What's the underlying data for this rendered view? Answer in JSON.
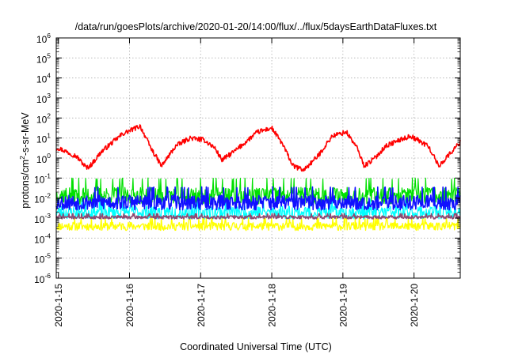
{
  "chart_data": {
    "type": "line",
    "title": "/data/run/goesPlots/archive/2020-01-20/14:00/flux/../flux/5daysEarthDataFluxes.txt",
    "xlabel": "Coordinated Universal Time (UTC)",
    "ylabel": "protons/cm2-s-sr-MeV",
    "ylabel_parts": {
      "pre": "protons/cm",
      "sup": "2",
      "post": "-s-sr-MeV"
    },
    "yscale": "log",
    "ylim": [
      -6,
      6
    ],
    "yticks": [
      {
        "exp": -6,
        "base": "10",
        "sup": "-6"
      },
      {
        "exp": -5,
        "base": "10",
        "sup": "-5"
      },
      {
        "exp": -4,
        "base": "10",
        "sup": "-4"
      },
      {
        "exp": -3,
        "base": "10",
        "sup": "-3"
      },
      {
        "exp": -2,
        "base": "10",
        "sup": "-2"
      },
      {
        "exp": -1,
        "base": "10",
        "sup": "-1"
      },
      {
        "exp": 0,
        "base": "10",
        "sup": "0"
      },
      {
        "exp": 1,
        "base": "10",
        "sup": "1"
      },
      {
        "exp": 2,
        "base": "10",
        "sup": "2"
      },
      {
        "exp": 3,
        "base": "10",
        "sup": "3"
      },
      {
        "exp": 4,
        "base": "10",
        "sup": "4"
      },
      {
        "exp": 5,
        "base": "10",
        "sup": "5"
      },
      {
        "exp": 6,
        "base": "10",
        "sup": "6"
      }
    ],
    "xlim": [
      -0.03,
      5.65
    ],
    "xticks": [
      {
        "day": 0,
        "label": "2020-1-15"
      },
      {
        "day": 1,
        "label": "2020-1-16"
      },
      {
        "day": 2,
        "label": "2020-1-17"
      },
      {
        "day": 3,
        "label": "2020-1-18"
      },
      {
        "day": 4,
        "label": "2020-1-19"
      },
      {
        "day": 5,
        "label": "2020-1-20"
      }
    ],
    "grid": true,
    "series": [
      {
        "color": "#ffff00",
        "log_center": -3.4,
        "noise": 0.22,
        "seed": 11,
        "width": 1.3,
        "kind": "noise"
      },
      {
        "color": "#00ffff",
        "log_center": -2.7,
        "noise": 0.35,
        "seed": 23,
        "width": 1.2,
        "kind": "noise"
      },
      {
        "color": "#00e000",
        "log_center": -1.85,
        "noise": 0.45,
        "seed": 37,
        "width": 1.2,
        "kind": "noise"
      },
      {
        "color": "#1010ff",
        "log_center": -2.2,
        "noise": 0.4,
        "seed": 53,
        "width": 1.6,
        "kind": "noise"
      },
      {
        "color": "#8e4a72",
        "log_center": -2.95,
        "noise": 0.09,
        "seed": 71,
        "width": 1.6,
        "kind": "noise"
      },
      {
        "color": "#ff0000",
        "seed": 97,
        "noise": 0.12,
        "width": 1.6,
        "kind": "profile",
        "x": [
          0.0,
          0.25,
          0.4,
          0.47,
          0.6,
          0.9,
          1.15,
          1.3,
          1.45,
          1.65,
          1.85,
          2.05,
          2.2,
          2.3,
          2.5,
          2.8,
          3.0,
          3.15,
          3.3,
          3.45,
          3.65,
          3.85,
          4.05,
          4.2,
          4.3,
          4.45,
          4.6,
          4.8,
          4.95,
          5.2,
          5.35,
          5.5,
          5.65
        ],
        "log_y": [
          0.5,
          0.1,
          -0.5,
          -0.3,
          0.3,
          1.2,
          1.6,
          0.5,
          -0.4,
          0.6,
          1.0,
          0.9,
          0.5,
          -0.1,
          0.4,
          1.3,
          1.5,
          0.7,
          -0.4,
          -0.6,
          0.1,
          1.1,
          1.3,
          0.5,
          -0.4,
          0.0,
          0.6,
          0.9,
          1.1,
          0.6,
          -0.4,
          0.2,
          0.8
        ]
      }
    ]
  }
}
